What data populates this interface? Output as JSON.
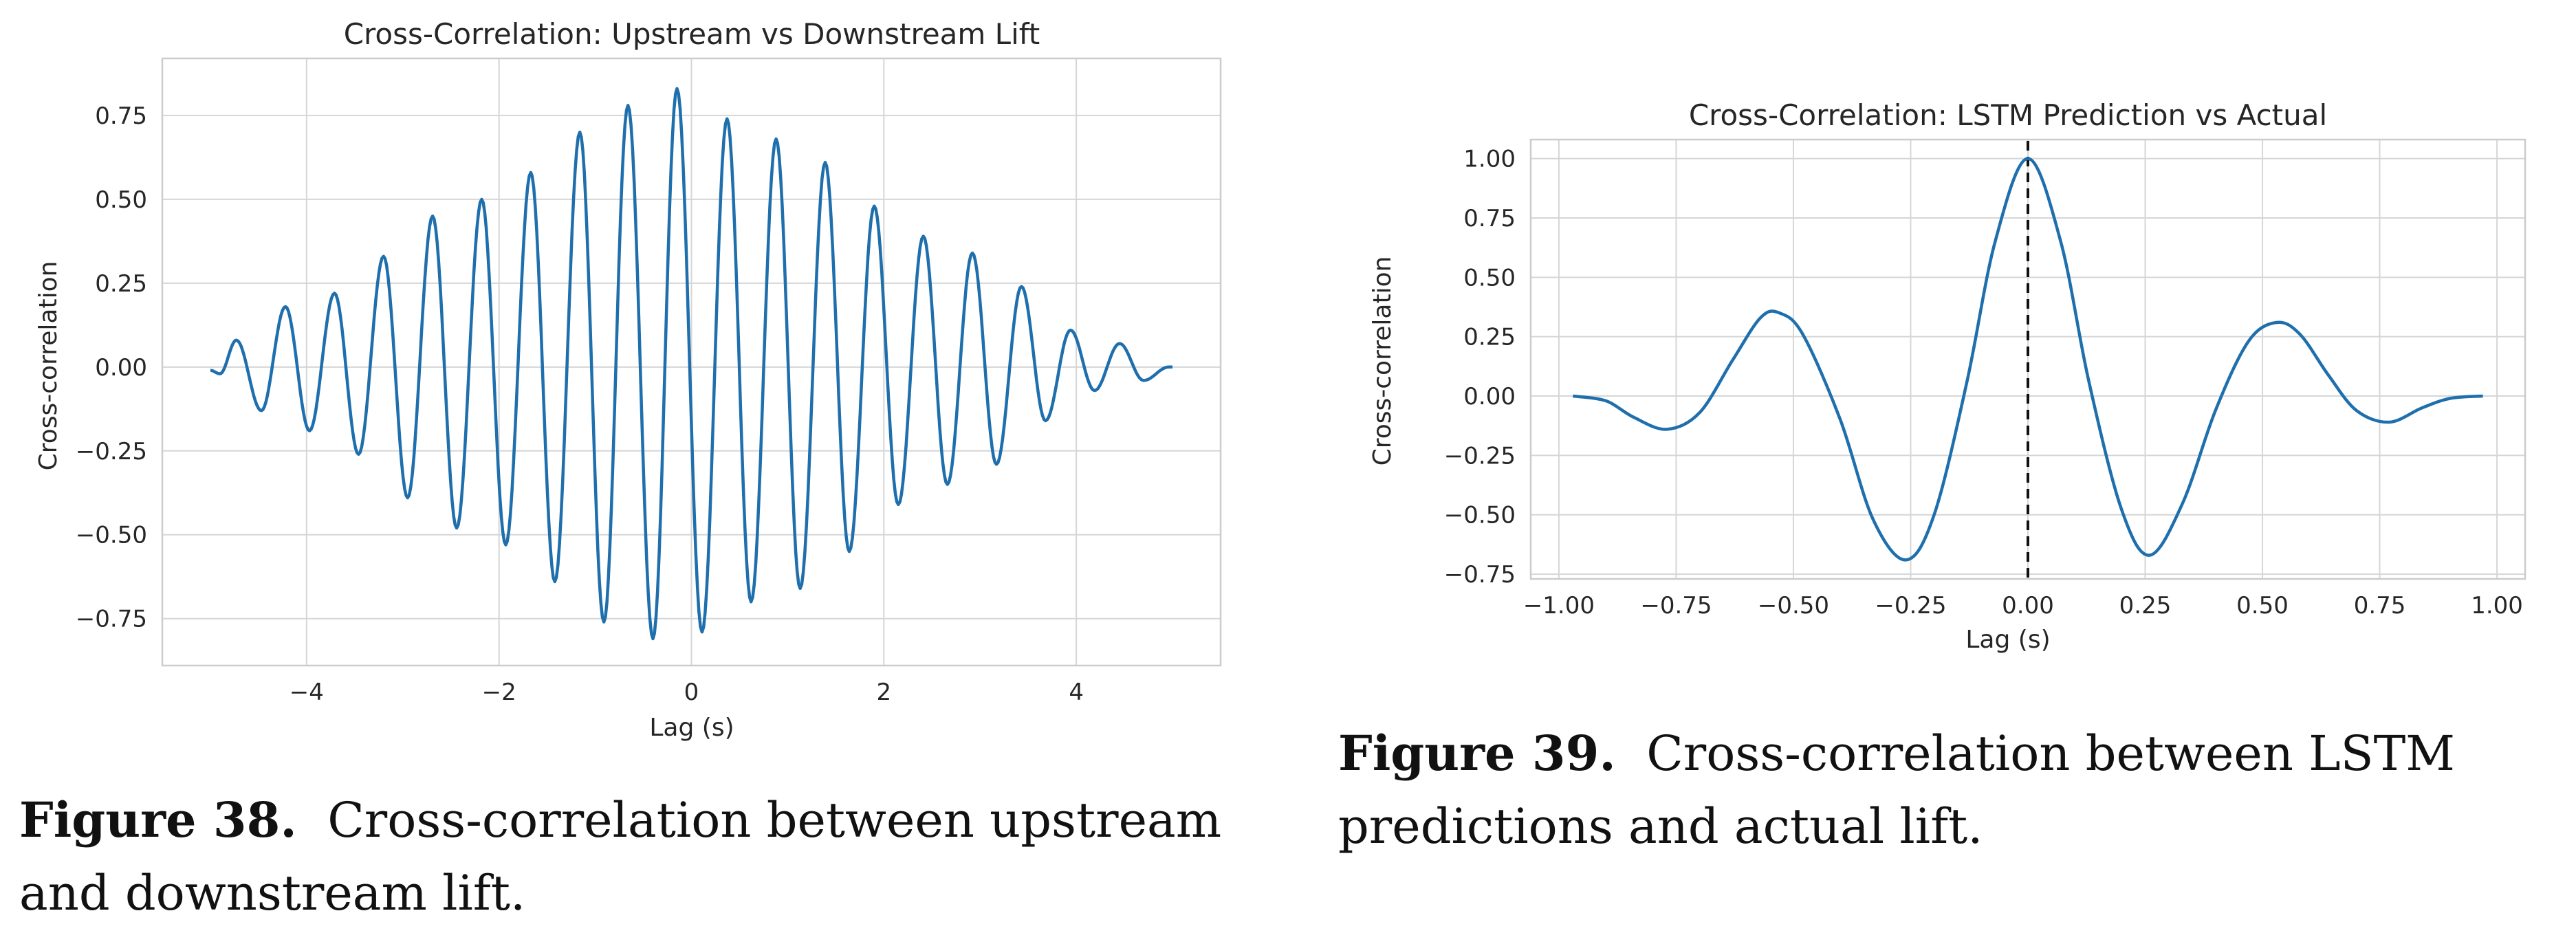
{
  "figures": [
    {
      "caption_label": "Figure 38.",
      "caption_text": "Cross-correlation between upstream and downstream lift.",
      "chart_data": {
        "type": "line",
        "title": "Cross-Correlation: Upstream vs Downstream Lift",
        "xlabel": "Lag (s)",
        "ylabel": "Cross-correlation",
        "xlim": [
          -5.5,
          5.5
        ],
        "ylim": [
          -0.89,
          0.92
        ],
        "xticks": [
          -4,
          -2,
          0,
          2,
          4
        ],
        "yticks": [
          -0.75,
          -0.5,
          -0.25,
          0.0,
          0.25,
          0.5,
          0.75
        ],
        "xtick_labels": [
          "−4",
          "−2",
          "0",
          "2",
          "4"
        ],
        "ytick_labels": [
          "−0.75",
          "−0.50",
          "−0.25",
          "0.00",
          "0.25",
          "0.50",
          "0.75"
        ],
        "grid": true,
        "legend": "none",
        "series_color": "#1f6fad",
        "x": [
          -5.0,
          -4.9,
          -4.73,
          -4.47,
          -4.22,
          -3.97,
          -3.71,
          -3.46,
          -3.2,
          -2.95,
          -2.69,
          -2.44,
          -2.18,
          -1.93,
          -1.67,
          -1.42,
          -1.16,
          -0.91,
          -0.66,
          -0.4,
          -0.15,
          0.11,
          0.37,
          0.62,
          0.88,
          1.13,
          1.39,
          1.64,
          1.9,
          2.15,
          2.41,
          2.66,
          2.92,
          3.17,
          3.43,
          3.68,
          3.94,
          4.19,
          4.45,
          4.7,
          4.96,
          5.0
        ],
        "y": [
          -0.01,
          -0.02,
          0.08,
          -0.13,
          0.18,
          -0.19,
          0.22,
          -0.26,
          0.33,
          -0.39,
          0.45,
          -0.48,
          0.5,
          -0.53,
          0.58,
          -0.64,
          0.7,
          -0.76,
          0.78,
          -0.81,
          0.83,
          -0.79,
          0.74,
          -0.7,
          0.68,
          -0.66,
          0.61,
          -0.55,
          0.48,
          -0.41,
          0.39,
          -0.35,
          0.34,
          -0.29,
          0.24,
          -0.16,
          0.11,
          -0.07,
          0.07,
          -0.04,
          0.0,
          0.0
        ]
      }
    },
    {
      "caption_label": "Figure 39.",
      "caption_text": "Cross-correlation between LSTM predictions and actual lift.",
      "chart_data": {
        "type": "line",
        "title": "Cross-Correlation: LSTM Prediction vs Actual",
        "xlabel": "Lag (s)",
        "ylabel": "Cross-correlation",
        "xlim": [
          -1.06,
          1.06
        ],
        "ylim": [
          -0.77,
          1.08
        ],
        "xticks": [
          -1.0,
          -0.75,
          -0.5,
          -0.25,
          0.0,
          0.25,
          0.5,
          0.75,
          1.0
        ],
        "yticks": [
          -0.75,
          -0.5,
          -0.25,
          0.0,
          0.25,
          0.5,
          0.75,
          1.0
        ],
        "xtick_labels": [
          "−1.00",
          "−0.75",
          "−0.50",
          "−0.25",
          "0.00",
          "0.25",
          "0.50",
          "0.75",
          "1.00"
        ],
        "ytick_labels": [
          "−0.75",
          "−0.50",
          "−0.25",
          "0.00",
          "0.25",
          "0.50",
          "0.75",
          "1.00"
        ],
        "grid": true,
        "legend": "none",
        "series_color": "#1f6fad",
        "reference_line_x": 0.0,
        "x": [
          -0.97,
          -0.9,
          -0.84,
          -0.77,
          -0.7,
          -0.63,
          -0.57,
          -0.53,
          -0.48,
          -0.4,
          -0.33,
          -0.26,
          -0.2,
          -0.13,
          -0.07,
          0.0,
          0.07,
          0.13,
          0.2,
          0.26,
          0.33,
          0.4,
          0.47,
          0.53,
          0.58,
          0.64,
          0.7,
          0.77,
          0.84,
          0.9,
          0.97
        ],
        "y": [
          0.0,
          -0.02,
          -0.09,
          -0.14,
          -0.07,
          0.15,
          0.33,
          0.35,
          0.26,
          -0.1,
          -0.52,
          -0.69,
          -0.5,
          0.06,
          0.65,
          1.0,
          0.65,
          0.06,
          -0.48,
          -0.67,
          -0.45,
          -0.06,
          0.23,
          0.31,
          0.26,
          0.09,
          -0.06,
          -0.11,
          -0.05,
          -0.01,
          0.0
        ]
      }
    }
  ]
}
